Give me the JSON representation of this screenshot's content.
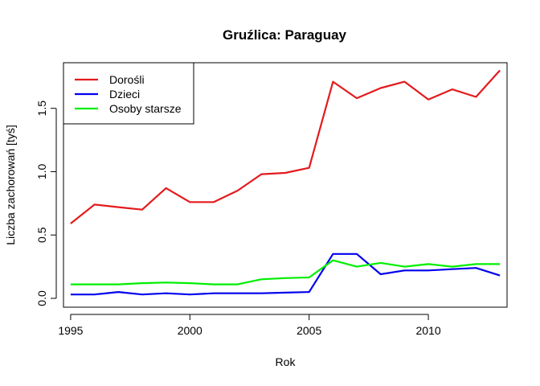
{
  "chart_data": {
    "type": "line",
    "title": "Gruźlica: Paraguay",
    "xlabel": "Rok",
    "ylabel": "Liczba zachorowań [tyś]",
    "xlim": [
      1994.7,
      2013.3
    ],
    "ylim": [
      -0.07,
      1.86
    ],
    "x_ticks": [
      1995,
      2000,
      2005,
      2010
    ],
    "y_ticks": [
      0.0,
      0.5,
      1.0,
      1.5
    ],
    "y_tick_labels": [
      "0.0",
      "0.5",
      "1.0",
      "1.5"
    ],
    "grid": false,
    "legend_position": "top-left",
    "x": [
      1995,
      1996,
      1997,
      1998,
      1999,
      2000,
      2001,
      2002,
      2003,
      2004,
      2005,
      2006,
      2007,
      2008,
      2009,
      2010,
      2011,
      2012,
      2013
    ],
    "series": [
      {
        "name": "Dorośli",
        "color": "#e41a1c",
        "values": [
          0.59,
          0.74,
          0.72,
          0.7,
          0.87,
          0.76,
          0.76,
          0.85,
          0.98,
          0.99,
          1.03,
          1.71,
          1.58,
          1.66,
          1.71,
          1.57,
          1.65,
          1.59,
          1.8
        ]
      },
      {
        "name": "Dzieci",
        "color": "#0000ee",
        "values": [
          0.03,
          0.03,
          0.05,
          0.03,
          0.04,
          0.03,
          0.04,
          0.04,
          0.04,
          0.045,
          0.05,
          0.35,
          0.35,
          0.19,
          0.22,
          0.22,
          0.23,
          0.24,
          0.18
        ]
      },
      {
        "name": "Osoby starsze",
        "color": "#00ee00",
        "values": [
          0.11,
          0.11,
          0.11,
          0.12,
          0.125,
          0.12,
          0.11,
          0.11,
          0.15,
          0.16,
          0.165,
          0.3,
          0.25,
          0.28,
          0.25,
          0.27,
          0.25,
          0.27,
          0.27
        ]
      }
    ]
  }
}
